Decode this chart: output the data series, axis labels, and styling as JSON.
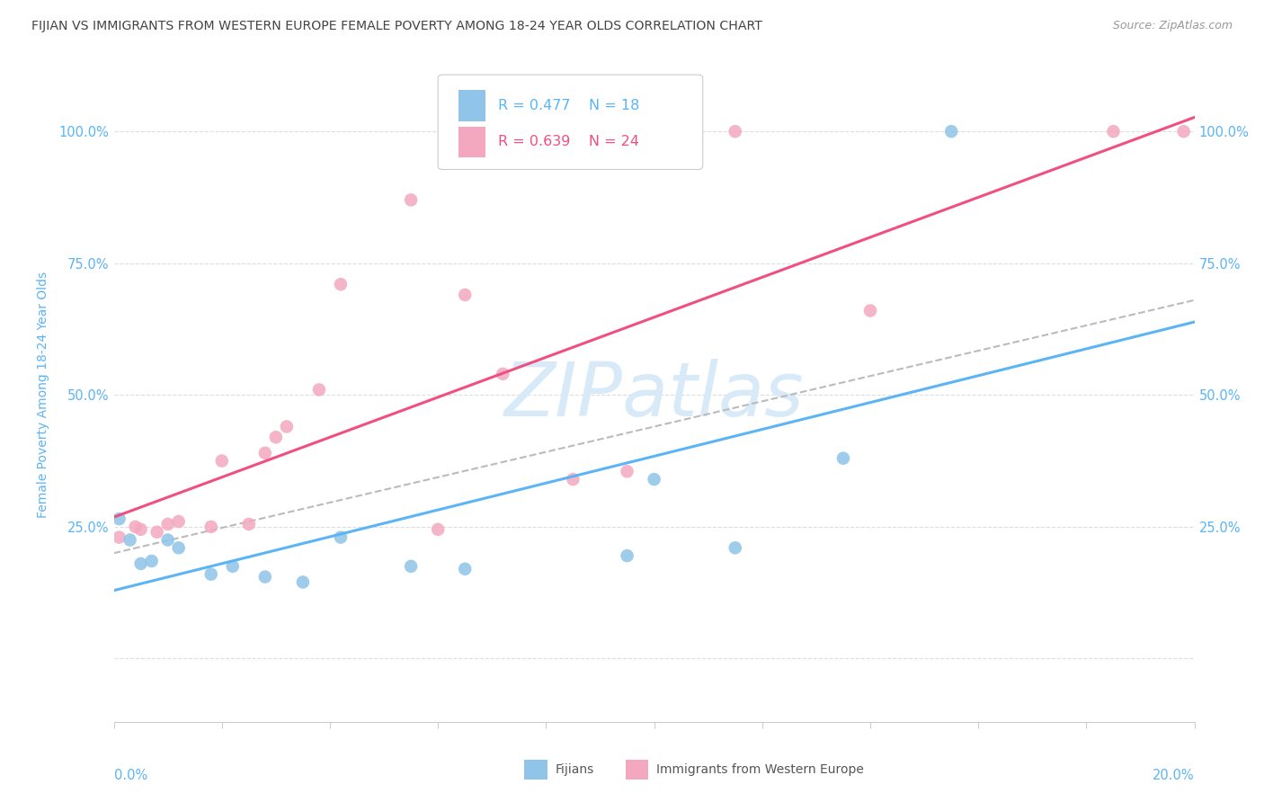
{
  "title": "FIJIAN VS IMMIGRANTS FROM WESTERN EUROPE FEMALE POVERTY AMONG 18-24 YEAR OLDS CORRELATION CHART",
  "source": "Source: ZipAtlas.com",
  "ylabel": "Female Poverty Among 18-24 Year Olds",
  "xlim": [
    0.0,
    0.2
  ],
  "ylim": [
    -0.12,
    1.12
  ],
  "ytick_positions": [
    0.0,
    0.25,
    0.5,
    0.75,
    1.0
  ],
  "xtick_positions": [
    0.0,
    0.02,
    0.04,
    0.06,
    0.08,
    0.1,
    0.12,
    0.14,
    0.16,
    0.18,
    0.2
  ],
  "fijian_color": "#90c4e8",
  "immigrant_color": "#f4a8c0",
  "fijian_R": 0.477,
  "fijian_N": 18,
  "immigrant_R": 0.639,
  "immigrant_N": 24,
  "fijian_x": [
    0.001,
    0.003,
    0.005,
    0.007,
    0.01,
    0.012,
    0.018,
    0.022,
    0.028,
    0.035,
    0.042,
    0.055,
    0.065,
    0.095,
    0.1,
    0.115,
    0.135,
    0.155
  ],
  "fijian_y": [
    0.265,
    0.225,
    0.18,
    0.185,
    0.225,
    0.21,
    0.16,
    0.175,
    0.155,
    0.145,
    0.23,
    0.175,
    0.17,
    0.195,
    0.34,
    0.21,
    0.38,
    1.0
  ],
  "immigrant_x": [
    0.001,
    0.004,
    0.005,
    0.008,
    0.01,
    0.012,
    0.018,
    0.02,
    0.025,
    0.028,
    0.03,
    0.032,
    0.038,
    0.042,
    0.055,
    0.06,
    0.065,
    0.072,
    0.085,
    0.095,
    0.115,
    0.14,
    0.185,
    0.198
  ],
  "immigrant_y": [
    0.23,
    0.25,
    0.245,
    0.24,
    0.255,
    0.26,
    0.25,
    0.375,
    0.255,
    0.39,
    0.42,
    0.44,
    0.51,
    0.71,
    0.87,
    0.245,
    0.69,
    0.54,
    0.34,
    0.355,
    1.0,
    0.66,
    1.0,
    1.0
  ],
  "fijian_line_color": "#5ab4f5",
  "immigrant_line_color": "#f05080",
  "ref_line_color": "#bbbbbb",
  "watermark": "ZIPatlas",
  "watermark_color": "#d8eaf8",
  "background_color": "#ffffff",
  "grid_color": "#dddddd",
  "title_color": "#444444",
  "axis_tick_color": "#5ab4f5",
  "legend_fijian_color": "#5ab4f5",
  "legend_immigrant_color": "#f05080"
}
